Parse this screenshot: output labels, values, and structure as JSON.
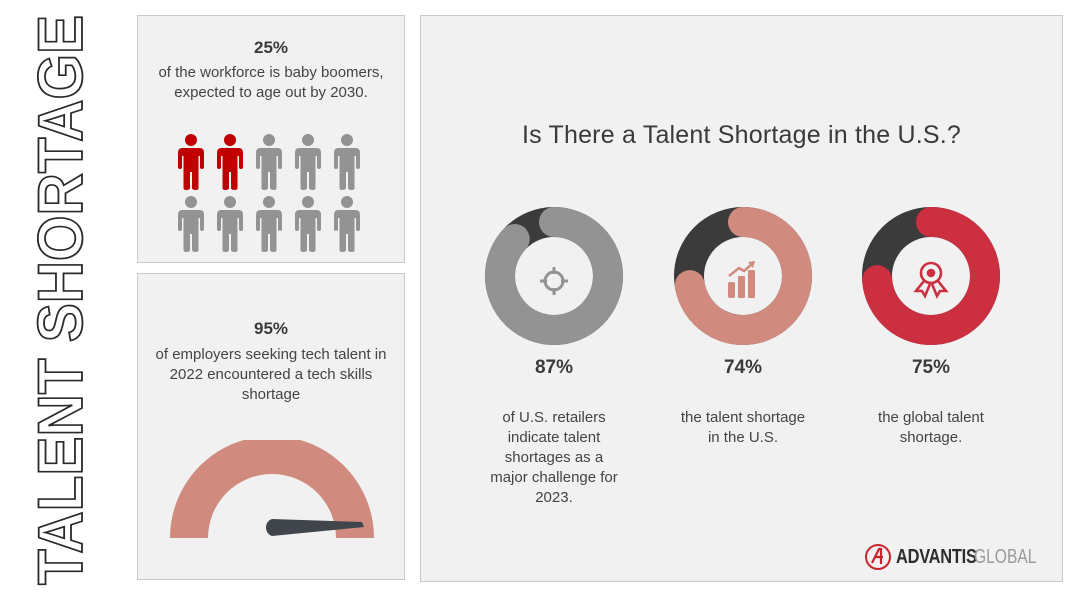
{
  "side_title": "TALENT SHORTAGE",
  "panel_workforce": {
    "stat": "25%",
    "description": "of the workforce is baby boomers, expected to age out by 2030.",
    "icon": "person-icon",
    "total_icons": 10,
    "highlighted_icons": 2,
    "highlight_color": "#c00000",
    "base_color": "#939393"
  },
  "panel_tech": {
    "stat": "95%",
    "description": "of employers seeking tech talent in 2022 encountered a tech skills shortage",
    "gauge_value": 95,
    "gauge_color": "#d08a7e",
    "needle_color": "#40454b"
  },
  "main": {
    "title": "Is There a Talent Shortage in the U.S.?",
    "stats": [
      {
        "value": "87%",
        "caption": "of U.S. retailers indicate talent shortages as a major challenge for 2023.",
        "icon": "target-icon",
        "color": "#939393",
        "percent": 87
      },
      {
        "value": "74%",
        "caption": "the talent shortage in the U.S.",
        "icon": "growth-chart-icon",
        "color": "#d08a7e",
        "percent": 74
      },
      {
        "value": "75%",
        "caption": "the global talent shortage.",
        "icon": "award-ribbon-icon",
        "color": "#cb2f40",
        "percent": 75
      }
    ],
    "remainder_color": "#3b3b3b"
  },
  "logo": {
    "brand": "ADVANTIS",
    "suffix": "GLOBAL",
    "accent": "#c8262f"
  },
  "chart_data": [
    {
      "type": "pie",
      "title": "Is There a Talent Shortage in the U.S.?",
      "categories": [
        "U.S. retailers citing talent shortage",
        "Talent shortage in the U.S.",
        "Global talent shortage"
      ],
      "values": [
        87,
        74,
        75
      ]
    },
    {
      "type": "gauge",
      "title": "Employers seeking tech talent in 2022 encountering shortage",
      "values": [
        95
      ]
    },
    {
      "type": "pictograph",
      "title": "Workforce that is baby boomers",
      "values": [
        25
      ]
    }
  ]
}
